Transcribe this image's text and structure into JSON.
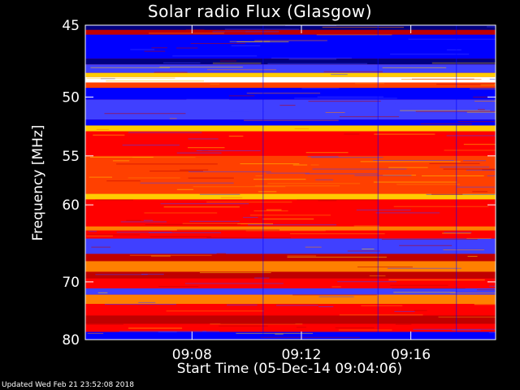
{
  "chart_data": {
    "type": "heatmap",
    "title": "Solar radio Flux (Glasgow)",
    "xlabel": "Start Time (05-Dec-14 09:04:06)",
    "ylabel": "Frequency [MHz]",
    "y_ticks": [
      45,
      50,
      55,
      60,
      70,
      80
    ],
    "y_scale": "reciprocal",
    "ylim": [
      45,
      80
    ],
    "x_ticks": [
      "09:08",
      "09:12",
      "09:16"
    ],
    "xlim": [
      "09:04:06",
      "09:19:06"
    ],
    "colormap": [
      "#000080",
      "#0000ff",
      "#4040ff",
      "#c00000",
      "#ff0000",
      "#ff4000",
      "#ff8000",
      "#ffcc00",
      "#ffffa0",
      "#ffffff"
    ],
    "bands": [
      {
        "from": 45.0,
        "to": 45.3,
        "level": 0
      },
      {
        "from": 45.3,
        "to": 45.6,
        "level": 3
      },
      {
        "from": 45.6,
        "to": 47.2,
        "level": 1
      },
      {
        "from": 47.2,
        "to": 47.6,
        "level": 0
      },
      {
        "from": 47.6,
        "to": 48.2,
        "level": 2
      },
      {
        "from": 48.2,
        "to": 48.5,
        "level": 7
      },
      {
        "from": 48.5,
        "to": 48.9,
        "level": 9
      },
      {
        "from": 48.9,
        "to": 49.3,
        "level": 5
      },
      {
        "from": 49.3,
        "to": 50.2,
        "level": 1
      },
      {
        "from": 50.2,
        "to": 51.8,
        "level": 2
      },
      {
        "from": 51.8,
        "to": 52.3,
        "level": 1
      },
      {
        "from": 52.3,
        "to": 52.8,
        "level": 7
      },
      {
        "from": 52.8,
        "to": 55.0,
        "level": 4
      },
      {
        "from": 55.0,
        "to": 58.8,
        "level": 5
      },
      {
        "from": 58.8,
        "to": 59.4,
        "level": 7
      },
      {
        "from": 59.4,
        "to": 62.5,
        "level": 4
      },
      {
        "from": 62.5,
        "to": 63.0,
        "level": 6
      },
      {
        "from": 63.0,
        "to": 64.0,
        "level": 4
      },
      {
        "from": 64.0,
        "to": 66.0,
        "level": 2
      },
      {
        "from": 66.0,
        "to": 67.0,
        "level": 3
      },
      {
        "from": 67.0,
        "to": 68.5,
        "level": 6
      },
      {
        "from": 68.5,
        "to": 69.5,
        "level": 3
      },
      {
        "from": 69.5,
        "to": 71.0,
        "level": 4
      },
      {
        "from": 71.0,
        "to": 72.0,
        "level": 2
      },
      {
        "from": 72.0,
        "to": 73.5,
        "level": 6
      },
      {
        "from": 73.5,
        "to": 75.5,
        "level": 4
      },
      {
        "from": 75.5,
        "to": 77.0,
        "level": 3
      },
      {
        "from": 77.0,
        "to": 78.5,
        "level": 4
      },
      {
        "from": 78.5,
        "to": 80.0,
        "level": 1
      }
    ],
    "segment_breaks": [
      "09:10:36",
      "09:14:48",
      "09:17:40"
    ]
  },
  "footer": "Updated Wed Feb 21 23:52:08 2018"
}
